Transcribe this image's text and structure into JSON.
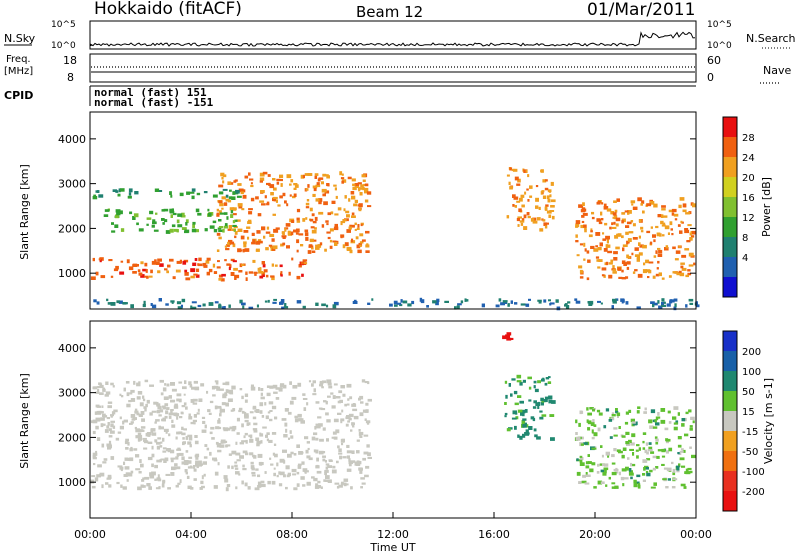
{
  "header": {
    "station": "Hokkaido (fitACF)",
    "beam": "Beam 12",
    "date": "01/Mar/2011"
  },
  "summary": {
    "nsky_label": "N.Sky",
    "nsky_ticks": [
      "10^5",
      "10^0"
    ],
    "nsearch_label": "N.Search",
    "freq_label": "Freq.",
    "freq_unit": "[MHz]",
    "freq_ticks": [
      "18",
      "8"
    ],
    "nave_label": "Nave",
    "nave_ticks": [
      "60",
      "0"
    ],
    "cpid_label": "CPID",
    "cpid_lines": [
      "normal (fast) 151",
      "normal (fast) -151"
    ]
  },
  "chart_data": [
    {
      "type": "heatmap",
      "title": "",
      "xlabel": "",
      "ylabel": "Slant Range [km]",
      "xlim": [
        0,
        24
      ],
      "ylim": [
        200,
        4600
      ],
      "xticks": [
        0,
        4,
        8,
        12,
        16,
        20,
        24
      ],
      "yticks": [
        1000,
        2000,
        3000,
        4000
      ],
      "colorbar": {
        "label": "Power [dB]",
        "ticks": [
          4,
          8,
          12,
          16,
          20,
          24,
          28
        ],
        "range": [
          0,
          32
        ],
        "colors": [
          "#1010d0",
          "#2060b0",
          "#208070",
          "#30a030",
          "#80c030",
          "#d0d020",
          "#f0a020",
          "#f06010",
          "#e81010"
        ]
      },
      "regions": [
        {
          "t_range": [
            0.0,
            8.5
          ],
          "r_range": [
            880,
            1360
          ],
          "level": 28
        },
        {
          "t_range": [
            5.0,
            11.0
          ],
          "r_range": [
            1500,
            3300
          ],
          "level": 26
        },
        {
          "t_range": [
            0.5,
            5.8
          ],
          "r_range": [
            1950,
            2450
          ],
          "level": 13
        },
        {
          "t_range": [
            0.0,
            6.0
          ],
          "r_range": [
            2700,
            2900
          ],
          "level": 10
        },
        {
          "t_range": [
            16.4,
            18.3
          ],
          "r_range": [
            2000,
            3400
          ],
          "level": 25
        },
        {
          "t_range": [
            19.2,
            23.9
          ],
          "r_range": [
            900,
            2700
          ],
          "level": 26
        },
        {
          "t_range": [
            0.0,
            24.0
          ],
          "r_range": [
            250,
            450
          ],
          "level": 6
        }
      ]
    },
    {
      "type": "heatmap",
      "title": "",
      "xlabel": "Time UT",
      "ylabel": "Slant Range [km]",
      "xlim": [
        0,
        24
      ],
      "ylim": [
        200,
        4600
      ],
      "xticks": [
        0,
        4,
        8,
        12,
        16,
        20,
        24
      ],
      "xticklabels": [
        "00:00",
        "04:00",
        "08:00",
        "12:00",
        "16:00",
        "20:00",
        "00:00"
      ],
      "yticks": [
        1000,
        2000,
        3000,
        4000
      ],
      "colorbar": {
        "label": "Velocity [m s-1]",
        "ticks": [
          200,
          100,
          50,
          15,
          -15,
          -50,
          -100,
          -200
        ],
        "colors": [
          "#1830c8",
          "#1860a8",
          "#208870",
          "#60c030",
          "#c8c8c0",
          "#f0a020",
          "#f07010",
          "#e83020",
          "#e81010"
        ]
      },
      "regions": [
        {
          "t_range": [
            0.0,
            11.0
          ],
          "r_range": [
            880,
            3300
          ],
          "value": 0
        },
        {
          "t_range": [
            16.4,
            18.3
          ],
          "r_range": [
            2000,
            3400
          ],
          "value": 40
        },
        {
          "t_range": [
            19.2,
            23.9
          ],
          "r_range": [
            900,
            2700
          ],
          "value": 20
        },
        {
          "t_range": [
            16.2,
            16.7
          ],
          "r_range": [
            4200,
            4500
          ],
          "value": -200
        }
      ]
    }
  ]
}
